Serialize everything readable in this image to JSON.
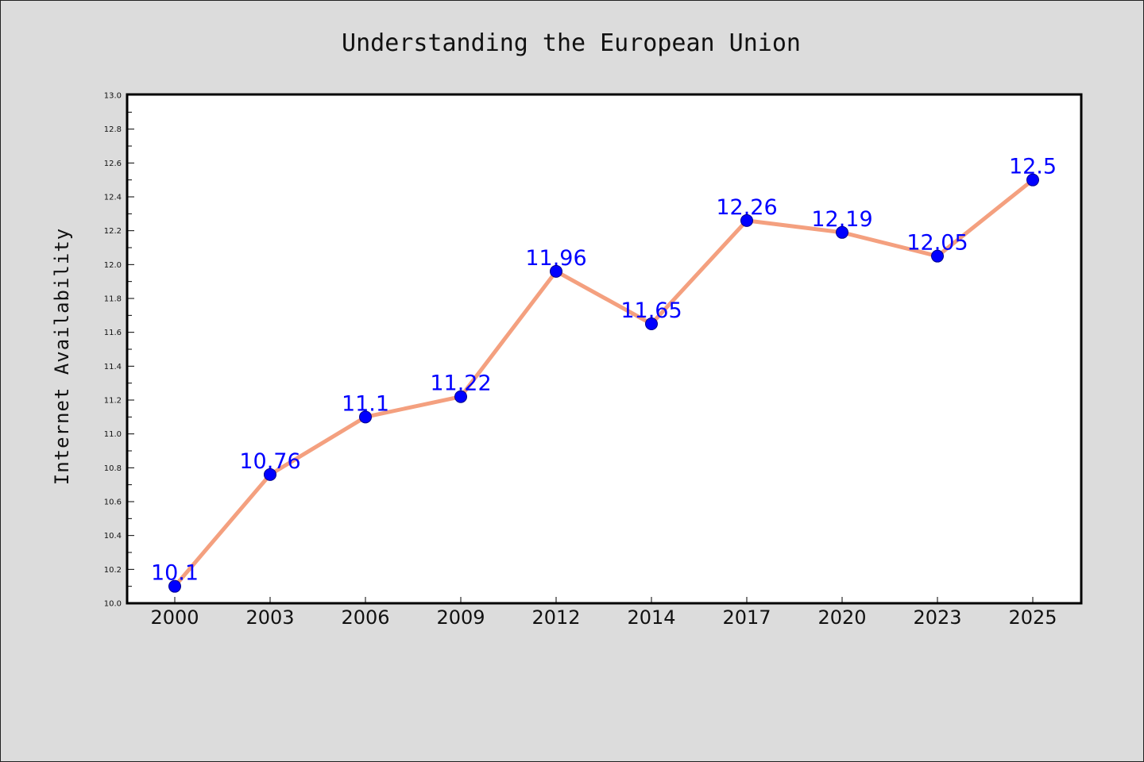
{
  "chart_data": {
    "type": "line",
    "title": "Understanding the European Union",
    "xlabel": "",
    "ylabel": "Internet Availability",
    "categories": [
      "2000",
      "2003",
      "2006",
      "2009",
      "2012",
      "2014",
      "2017",
      "2020",
      "2023",
      "2025"
    ],
    "series": [
      {
        "values": [
          10.1,
          10.76,
          11.1,
          11.22,
          11.96,
          11.65,
          12.26,
          12.19,
          12.05,
          12.5
        ],
        "data_labels": [
          "10.1",
          "10.76",
          "11.1",
          "11.22",
          "11.96",
          "11.65",
          "12.26",
          "12.19",
          "12.05",
          "12.5"
        ]
      }
    ],
    "ylim": [
      10.0,
      13.0
    ],
    "y_ticks": [
      "10.0",
      "10.2",
      "10.4",
      "10.6",
      "10.8",
      "11.0",
      "11.2",
      "11.4",
      "11.6",
      "11.8",
      "12.0",
      "12.2",
      "12.4",
      "12.6",
      "12.8",
      "13.0"
    ],
    "grid": false,
    "legend": "none",
    "colors": {
      "line": "#f4a07f",
      "marker": "#0000ff",
      "marker_edge": "#00008b",
      "label": "#0000ff",
      "background": "#dcdcdc",
      "plot_background": "#ffffff"
    }
  }
}
